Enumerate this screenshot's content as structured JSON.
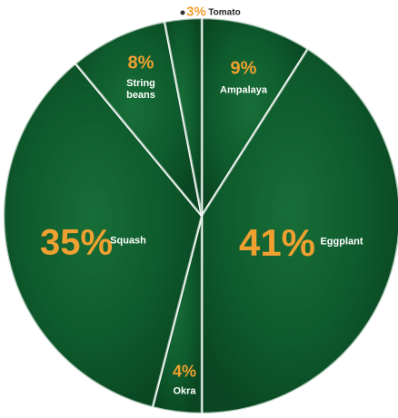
{
  "chart_data": {
    "type": "pie",
    "categories": [
      "Ampalaya",
      "Eggplant",
      "Okra",
      "Squash",
      "String beans",
      "Tomato"
    ],
    "values": [
      9,
      41,
      4,
      35,
      8,
      3
    ],
    "value_labels": [
      "9%",
      "41%",
      "4%",
      "35%",
      "8%",
      "3%"
    ],
    "color": "#0e5a2c"
  }
}
